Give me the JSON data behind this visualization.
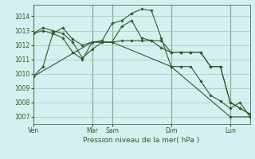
{
  "background_color": "#cceeff",
  "plot_bg": "#d5f0f0",
  "grid_color": "#99ccbb",
  "line_color": "#2d5a2d",
  "ylim": [
    1006.5,
    1014.8
  ],
  "yticks": [
    1007,
    1008,
    1009,
    1010,
    1011,
    1012,
    1013,
    1014
  ],
  "xlabel": "Pression niveau de la mer( hPa )",
  "day_labels": [
    "Ven",
    "Mar",
    "Sam",
    "Dim",
    "Lun"
  ],
  "day_positions": [
    0.0,
    6.0,
    8.0,
    14.0,
    20.0
  ],
  "xlim": [
    0,
    22
  ],
  "series": [
    {
      "x": [
        0,
        6,
        8,
        14,
        20,
        22
      ],
      "y": [
        1009.8,
        1012.2,
        1012.2,
        1010.5,
        1007.0,
        1007.0
      ]
    },
    {
      "x": [
        0,
        1,
        2,
        3,
        4,
        5,
        6,
        7,
        8,
        9,
        10,
        11,
        12,
        13,
        14,
        15,
        16,
        17,
        18,
        19,
        20,
        21,
        22
      ],
      "y": [
        1009.8,
        1010.5,
        1012.8,
        1013.2,
        1012.4,
        1012.0,
        1012.2,
        1012.3,
        1013.5,
        1013.7,
        1014.2,
        1014.5,
        1014.4,
        1012.5,
        1010.5,
        1010.5,
        1010.5,
        1009.5,
        1008.5,
        1008.1,
        1007.6,
        1008.0,
        1007.0
      ]
    },
    {
      "x": [
        0,
        1,
        2,
        3,
        4,
        5,
        6,
        7,
        8,
        9,
        10,
        11,
        12,
        13,
        14,
        15,
        16,
        17,
        18,
        19,
        20,
        21,
        22
      ],
      "y": [
        1012.8,
        1013.2,
        1013.0,
        1012.8,
        1012.2,
        1011.1,
        1011.7,
        1012.2,
        1012.2,
        1012.3,
        1012.3,
        1012.3,
        1012.3,
        1012.3,
        1011.5,
        1011.5,
        1011.5,
        1011.5,
        1010.5,
        1010.5,
        1008.0,
        1007.6,
        1007.2
      ]
    },
    {
      "x": [
        0,
        1,
        2,
        3,
        4,
        5,
        6,
        7,
        8,
        9,
        10,
        11,
        12,
        13,
        14,
        15,
        16,
        17,
        18,
        19,
        20,
        21,
        22
      ],
      "y": [
        1012.8,
        1013.0,
        1012.8,
        1012.5,
        1011.5,
        1011.0,
        1012.2,
        1012.2,
        1012.2,
        1013.3,
        1013.7,
        1012.5,
        1012.3,
        1011.8,
        1011.5,
        1011.5,
        1011.5,
        1011.5,
        1010.5,
        1010.5,
        1008.0,
        1007.6,
        1007.2
      ]
    }
  ]
}
